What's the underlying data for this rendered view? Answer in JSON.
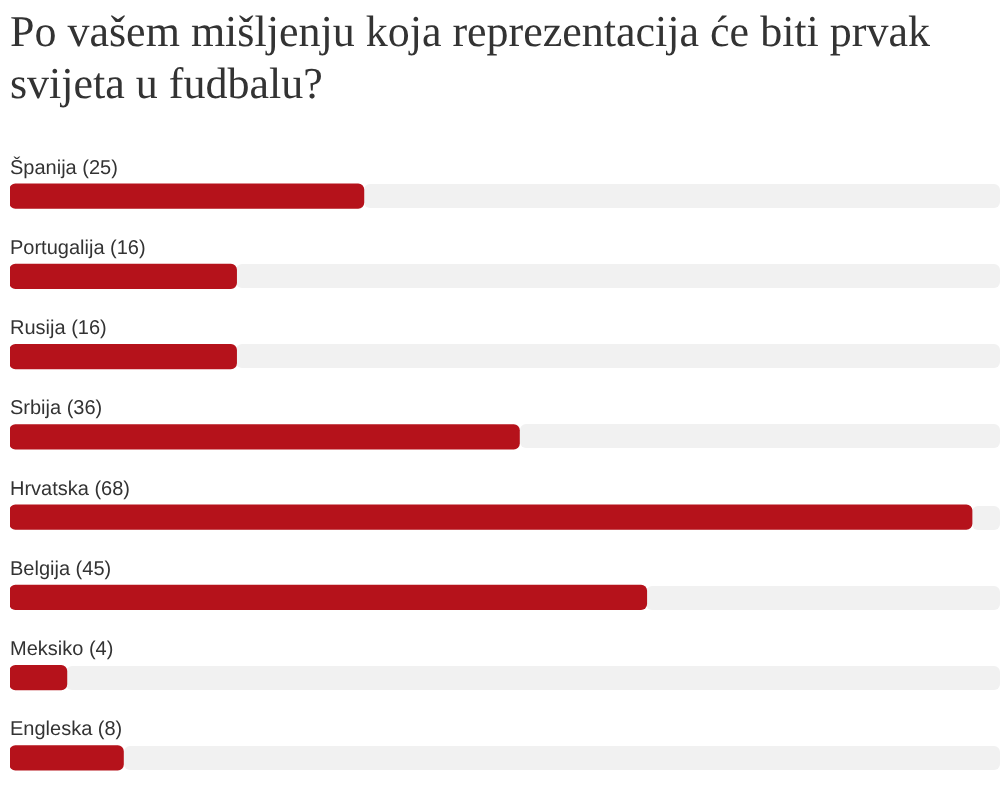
{
  "chart_data": {
    "type": "bar",
    "orientation": "horizontal",
    "title": "Po vašem mišljenju koja reprezentacija će biti prvak svijeta u fudbalu?",
    "categories": [
      "Španija",
      "Portugalija",
      "Rusija",
      "Srbija",
      "Hrvatska",
      "Belgija",
      "Meksiko",
      "Engleska"
    ],
    "values": [
      25,
      16,
      16,
      36,
      68,
      45,
      4,
      8
    ],
    "value_labels": [
      "(25)",
      "(16)",
      "(16)",
      "(36)",
      "(68)",
      "(45)",
      "(4)",
      "(8)"
    ],
    "color": "#b5121b",
    "tick_labels": "y",
    "legend": false
  }
}
